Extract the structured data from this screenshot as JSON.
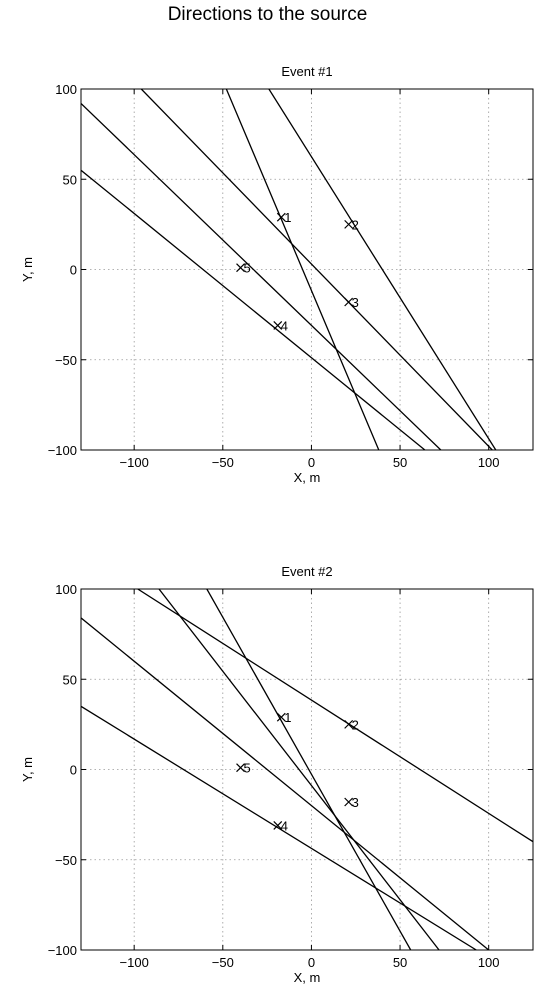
{
  "figure": {
    "title": "Directions to the source"
  },
  "chart_data": [
    {
      "type": "line",
      "title": "Event #1",
      "xlabel": "X, m",
      "ylabel": "Y, m",
      "xlim": [
        -130,
        125
      ],
      "ylim": [
        -100,
        100
      ],
      "xticks": [
        -100,
        -50,
        0,
        50,
        100
      ],
      "yticks": [
        -100,
        -50,
        0,
        50,
        100
      ],
      "xtick_labels": [
        "−100",
        "−50",
        "0",
        "50",
        "100"
      ],
      "ytick_labels": [
        "−100",
        "−50",
        "0",
        "50",
        "100"
      ],
      "grid": true,
      "sensors": [
        {
          "label": "1",
          "x": -17,
          "y": 29
        },
        {
          "label": "2",
          "x": 21,
          "y": 25
        },
        {
          "label": "3",
          "x": 21,
          "y": -18
        },
        {
          "label": "4",
          "x": -19,
          "y": -31
        },
        {
          "label": "5",
          "x": -40,
          "y": 1
        }
      ],
      "series": [
        {
          "x": [
            -48,
            38
          ],
          "y": [
            100,
            -100
          ]
        },
        {
          "x": [
            -24,
            104
          ],
          "y": [
            100,
            -100
          ]
        },
        {
          "x": [
            -96,
            102
          ],
          "y": [
            100,
            -100
          ]
        },
        {
          "x": [
            -130,
            73
          ],
          "y": [
            92,
            -100
          ]
        },
        {
          "x": [
            -130,
            64
          ],
          "y": [
            55,
            -100
          ]
        }
      ]
    },
    {
      "type": "line",
      "title": "Event #2",
      "xlabel": "X, m",
      "ylabel": "Y, m",
      "xlim": [
        -130,
        125
      ],
      "ylim": [
        -100,
        100
      ],
      "xticks": [
        -100,
        -50,
        0,
        50,
        100
      ],
      "yticks": [
        -100,
        -50,
        0,
        50,
        100
      ],
      "xtick_labels": [
        "−100",
        "−50",
        "0",
        "50",
        "100"
      ],
      "ytick_labels": [
        "−100",
        "−50",
        "0",
        "50",
        "100"
      ],
      "grid": true,
      "sensors": [
        {
          "label": "1",
          "x": -17,
          "y": 29
        },
        {
          "label": "2",
          "x": 21,
          "y": 25
        },
        {
          "label": "3",
          "x": 21,
          "y": -18
        },
        {
          "label": "4",
          "x": -19,
          "y": -31
        },
        {
          "label": "5",
          "x": -40,
          "y": 1
        }
      ],
      "series": [
        {
          "x": [
            -59,
            56
          ],
          "y": [
            100,
            -100
          ]
        },
        {
          "x": [
            -86,
            72
          ],
          "y": [
            100,
            -100
          ]
        },
        {
          "x": [
            -98,
            125
          ],
          "y": [
            100,
            -40
          ]
        },
        {
          "x": [
            -130,
            100
          ],
          "y": [
            84,
            -100
          ]
        },
        {
          "x": [
            -130,
            93
          ],
          "y": [
            35,
            -100
          ]
        }
      ]
    }
  ]
}
